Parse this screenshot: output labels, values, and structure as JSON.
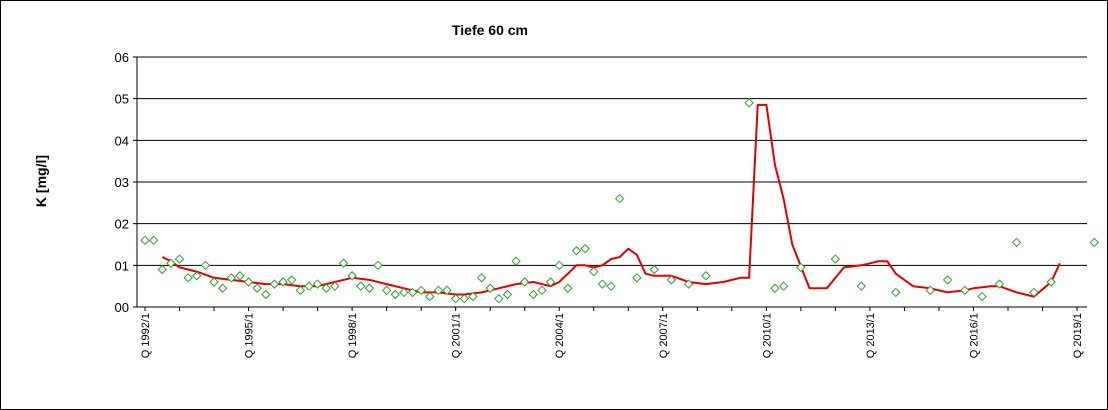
{
  "chart_data": {
    "type": "line",
    "title": "Tiefe  60 cm",
    "xlabel": "",
    "ylabel": "K [mg/l]",
    "y_tick_labels": [
      "00",
      "01",
      "02",
      "03",
      "04",
      "05",
      "06"
    ],
    "ylim": [
      0,
      6
    ],
    "grid": "horizontal",
    "legend": "none",
    "x_tick_labels": [
      "Q 1992/1",
      "Q 1995/1",
      "Q 1998/1",
      "Q 2001/1",
      "Q 2004/1",
      "Q 2007/1",
      "Q 2010/1",
      "Q 2013/1",
      "Q 2016/1",
      "Q 2019/1"
    ],
    "xlim": [
      1992.0,
      2019.75
    ],
    "colors": {
      "measurement": "#2ca02c",
      "trend": "#e00000",
      "grid": "#000000"
    },
    "series": [
      {
        "style": "diamond-markers",
        "x": [
          1992.0,
          1992.25,
          1992.5,
          1992.75,
          1993.0,
          1993.25,
          1993.5,
          1993.75,
          1994.0,
          1994.25,
          1994.5,
          1994.75,
          1995.0,
          1995.25,
          1995.5,
          1995.75,
          1996.0,
          1996.25,
          1996.5,
          1996.75,
          1997.0,
          1997.25,
          1997.5,
          1997.75,
          1998.0,
          1998.25,
          1998.5,
          1998.75,
          1999.0,
          1999.25,
          1999.5,
          1999.75,
          2000.0,
          2000.25,
          2000.5,
          2000.75,
          2001.0,
          2001.25,
          2001.5,
          2001.75,
          2002.0,
          2002.25,
          2002.5,
          2002.75,
          2003.0,
          2003.25,
          2003.5,
          2003.75,
          2004.0,
          2004.25,
          2004.5,
          2004.75,
          2005.0,
          2005.25,
          2005.5,
          2005.75,
          2006.25,
          2006.75,
          2007.25,
          2007.75,
          2008.25,
          2009.5,
          2010.25,
          2010.5,
          2011.0,
          2012.0,
          2012.75,
          2013.75,
          2014.75,
          2015.25,
          2015.75,
          2016.25,
          2016.75,
          2017.25,
          2017.75,
          2018.25,
          2019.5
        ],
        "values": [
          1.6,
          1.6,
          0.9,
          1.05,
          1.15,
          0.7,
          0.75,
          1.0,
          0.6,
          0.45,
          0.7,
          0.75,
          0.6,
          0.45,
          0.3,
          0.55,
          0.6,
          0.65,
          0.4,
          0.5,
          0.55,
          0.45,
          0.5,
          1.05,
          0.75,
          0.5,
          0.45,
          1.0,
          0.4,
          0.3,
          0.35,
          0.35,
          0.4,
          0.25,
          0.4,
          0.4,
          0.2,
          0.2,
          0.25,
          0.7,
          0.45,
          0.2,
          0.3,
          1.1,
          0.6,
          0.3,
          0.4,
          0.6,
          1.0,
          0.45,
          1.35,
          1.4,
          0.85,
          0.55,
          0.5,
          2.6,
          0.7,
          0.9,
          0.65,
          0.55,
          0.75,
          4.9,
          0.45,
          0.5,
          0.95,
          1.15,
          0.5,
          0.35,
          0.4,
          0.65,
          0.4,
          0.25,
          0.55,
          1.55,
          0.35,
          0.6,
          1.55
        ]
      },
      {
        "style": "line",
        "x": [
          1992.5,
          1992.75,
          1993.0,
          1993.5,
          1994.0,
          1994.5,
          1995.0,
          1995.5,
          1996.0,
          1996.5,
          1997.0,
          1997.5,
          1998.0,
          1998.5,
          1999.0,
          1999.5,
          2000.0,
          2000.5,
          2001.0,
          2001.25,
          2001.75,
          2002.25,
          2002.75,
          2003.25,
          2003.75,
          2004.0,
          2004.25,
          2004.5,
          2004.75,
          2005.0,
          2005.25,
          2005.5,
          2005.75,
          2006.0,
          2006.25,
          2006.5,
          2006.75,
          2007.25,
          2007.75,
          2008.25,
          2008.75,
          2009.0,
          2009.25,
          2009.5,
          2009.75,
          2010.0,
          2010.25,
          2010.5,
          2010.75,
          2011.25,
          2011.5,
          2011.75,
          2012.25,
          2012.75,
          2013.0,
          2013.25,
          2013.5,
          2013.75,
          2014.25,
          2014.75,
          2015.25,
          2015.75,
          2016.0,
          2016.5,
          2016.75,
          2017.25,
          2017.75,
          2018.25,
          2018.5
        ],
        "values": [
          1.2,
          1.1,
          0.95,
          0.85,
          0.7,
          0.65,
          0.6,
          0.55,
          0.55,
          0.5,
          0.5,
          0.6,
          0.7,
          0.65,
          0.55,
          0.45,
          0.35,
          0.35,
          0.3,
          0.3,
          0.35,
          0.45,
          0.55,
          0.6,
          0.5,
          0.6,
          0.8,
          1.0,
          1.0,
          0.95,
          1.0,
          1.15,
          1.2,
          1.4,
          1.25,
          0.8,
          0.75,
          0.75,
          0.6,
          0.55,
          0.6,
          0.65,
          0.7,
          0.7,
          4.85,
          4.85,
          3.4,
          2.6,
          1.5,
          0.45,
          0.45,
          0.45,
          0.95,
          1.0,
          1.05,
          1.1,
          1.1,
          0.8,
          0.5,
          0.45,
          0.35,
          0.4,
          0.45,
          0.5,
          0.5,
          0.35,
          0.25,
          0.6,
          1.05
        ]
      }
    ]
  }
}
